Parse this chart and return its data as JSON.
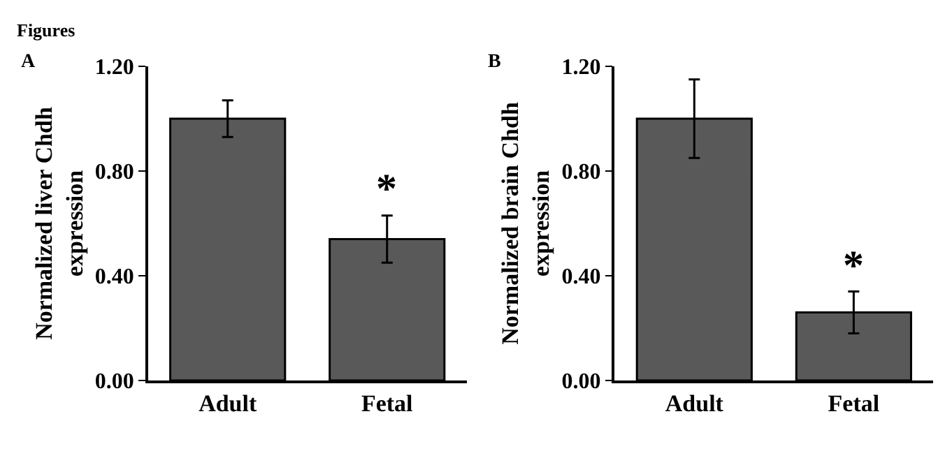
{
  "chart_data": [
    {
      "type": "bar",
      "title": "A",
      "ylabel": "Normalized liver Chdh expression",
      "categories": [
        "Adult",
        "Fetal"
      ],
      "values": [
        1.0,
        0.54
      ],
      "errors": [
        0.07,
        0.09
      ],
      "color": "#595959",
      "ylim": [
        0,
        1.2
      ],
      "yticks": [
        {
          "value": 0,
          "label": "0.00"
        },
        {
          "value": 0.4,
          "label": "0.40"
        },
        {
          "value": 0.8,
          "label": "0.80"
        },
        {
          "value": 1.2,
          "label": "1.20"
        }
      ],
      "annotations": [
        "Figures",
        {
          "text": "*",
          "x": "Fetal",
          "y": 0.63
        }
      ]
    },
    {
      "type": "bar",
      "title": "B",
      "ylabel": "Normalized brain Chdh expression",
      "categories": [
        "Adult",
        "Fetal"
      ],
      "values": [
        1.0,
        0.26
      ],
      "errors": [
        0.15,
        0.08
      ],
      "color": "#595959",
      "ylim": [
        0,
        1.2
      ],
      "yticks": [
        {
          "value": 0,
          "label": "0.00"
        },
        {
          "value": 0.4,
          "label": "0.40"
        },
        {
          "value": 0.8,
          "label": "0.80"
        },
        {
          "value": 1.2,
          "label": "1.20"
        }
      ],
      "annotations": [
        {
          "text": "*",
          "x": "Fetal",
          "y": 0.34
        }
      ]
    }
  ]
}
